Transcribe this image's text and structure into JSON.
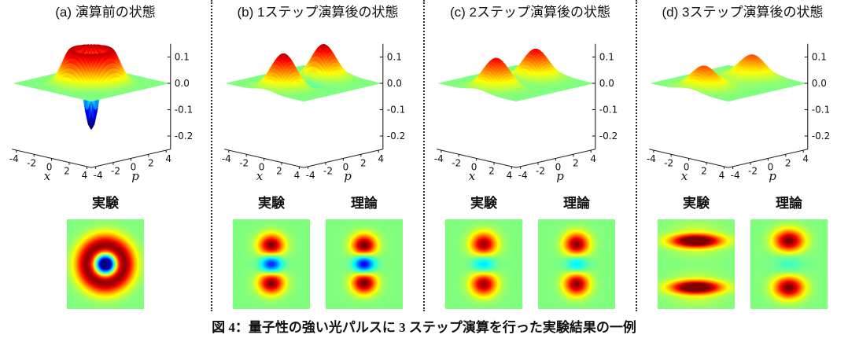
{
  "figure": {
    "caption": "図 4：量子性の強い光パルスに 3 ステップ演算を行った実験結果の一例"
  },
  "colors": {
    "background": "#ffffff",
    "separator": "#333333",
    "text": "#111111",
    "colormap": "jet",
    "heatmap_background": "#80ff80"
  },
  "chart_data": [
    {
      "type": "surface",
      "panel": "a",
      "title": "(a) 演算前の状態",
      "xlabel": "x",
      "ylabel": "p",
      "x_ticks": [
        -4,
        -2,
        0,
        2,
        4
      ],
      "p_ticks": [
        -4,
        -2,
        0,
        2,
        4
      ],
      "z_ticks": [
        0.1,
        0.0,
        -0.1,
        -0.2
      ],
      "zlim": [
        -0.25,
        0.15
      ],
      "peak_height": 0.13,
      "center_value": -0.17,
      "model": {
        "kind": "ring",
        "a": 0.25,
        "c": -0.175,
        "s": 2.0
      },
      "heatmaps": [
        {
          "label": "実験",
          "model": {
            "kind": "ring",
            "a": 0.25,
            "c": -0.175,
            "s": 2.0
          }
        }
      ]
    },
    {
      "type": "surface",
      "panel": "b",
      "title": "(b) 1ステップ演算後の状態",
      "xlabel": "x",
      "ylabel": "p",
      "x_ticks": [
        -4,
        -2,
        0,
        2,
        4
      ],
      "p_ticks": [
        -4,
        -2,
        0,
        2,
        4
      ],
      "z_ticks": [
        0.1,
        0.0,
        -0.1,
        -0.2
      ],
      "zlim": [
        -0.25,
        0.15
      ],
      "peak_height": 0.135,
      "center_value": -0.03,
      "model": {
        "kind": "lobes",
        "A": 0.135,
        "d": 2.2,
        "sp": 2.0,
        "sx": 2.2,
        "C": 0.055,
        "s0": 2.0
      },
      "heatmaps": [
        {
          "label": "実験",
          "model": {
            "kind": "lobes",
            "A": 0.14,
            "d": 1.6,
            "sp": 0.9,
            "sx": 1.15,
            "C": 0.105,
            "s0": 0.8
          }
        },
        {
          "label": "理論",
          "model": {
            "kind": "lobes",
            "A": 0.145,
            "d": 1.6,
            "sp": 0.85,
            "sx": 1.05,
            "C": 0.115,
            "s0": 0.75
          }
        }
      ]
    },
    {
      "type": "surface",
      "panel": "c",
      "title": "(c) 2ステップ演算後の状態",
      "xlabel": "x",
      "ylabel": "p",
      "x_ticks": [
        -4,
        -2,
        0,
        2,
        4
      ],
      "p_ticks": [
        -4,
        -2,
        0,
        2,
        4
      ],
      "z_ticks": [
        0.1,
        0.0,
        -0.1,
        -0.2
      ],
      "zlim": [
        -0.25,
        0.15
      ],
      "peak_height": 0.115,
      "center_value": 0.0,
      "model": {
        "kind": "lobes",
        "A": 0.115,
        "d": 2.2,
        "sp": 2.2,
        "sx": 2.4,
        "C": 0.025,
        "s0": 2.0
      },
      "heatmaps": [
        {
          "label": "実験",
          "model": {
            "kind": "lobes",
            "A": 0.13,
            "d": 1.7,
            "sp": 1.0,
            "sx": 1.2,
            "C": 0.055,
            "s0": 0.9
          }
        },
        {
          "label": "理論",
          "model": {
            "kind": "lobes",
            "A": 0.135,
            "d": 1.7,
            "sp": 0.95,
            "sx": 1.1,
            "C": 0.05,
            "s0": 0.85
          }
        }
      ]
    },
    {
      "type": "surface",
      "panel": "d",
      "title": "(d) 3ステップ演算後の状態",
      "xlabel": "x",
      "ylabel": "p",
      "x_ticks": [
        -4,
        -2,
        0,
        2,
        4
      ],
      "p_ticks": [
        -4,
        -2,
        0,
        2,
        4
      ],
      "z_ticks": [
        0.1,
        0.0,
        -0.1,
        -0.2
      ],
      "zlim": [
        -0.25,
        0.15
      ],
      "peak_height": 0.08,
      "center_value": 0.01,
      "model": {
        "kind": "lobes",
        "A": 0.08,
        "d": 2.4,
        "sp": 2.6,
        "sx": 3.2,
        "C": 0.005,
        "s0": 2.0,
        "fringe": {
          "f": 0.2,
          "k": 2.0
        }
      },
      "heatmaps": [
        {
          "label": "実験",
          "model": {
            "kind": "lobes",
            "A": 0.125,
            "d": 2.05,
            "sp": 0.8,
            "sx": 4.5,
            "C": 0,
            "s0": 1.0,
            "fringe": {
              "f": 0.5,
              "k": 3.2
            }
          }
        },
        {
          "label": "理論",
          "model": {
            "kind": "lobes",
            "A": 0.14,
            "d": 2.0,
            "sp": 0.9,
            "sx": 1.6,
            "C": 0.02,
            "s0": 1.5
          }
        }
      ]
    }
  ]
}
